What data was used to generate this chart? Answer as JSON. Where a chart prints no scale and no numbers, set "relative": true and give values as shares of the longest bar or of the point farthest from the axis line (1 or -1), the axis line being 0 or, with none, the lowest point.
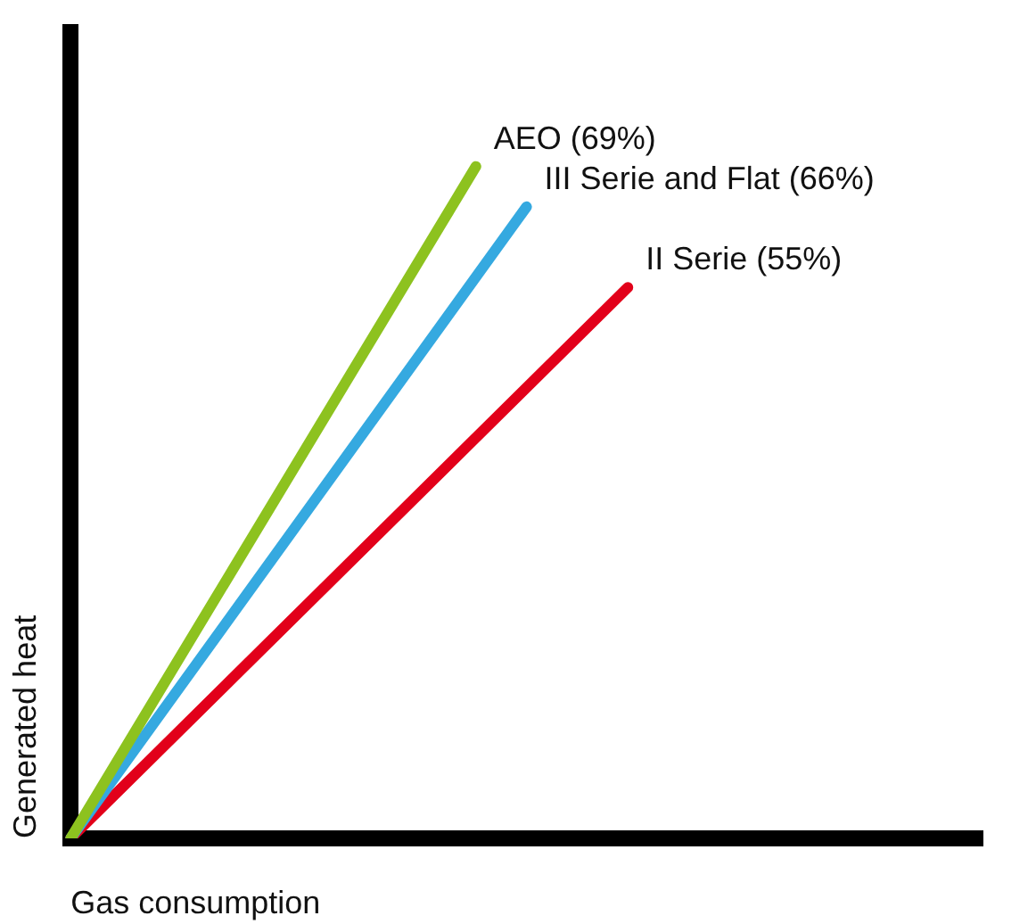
{
  "chart_data": {
    "type": "line",
    "relative": true,
    "xlabel": "Gas consumption",
    "ylabel": "Generated heat",
    "grid": false,
    "marker": "none",
    "line_style": "solid",
    "legend": false,
    "categories": [
      null,
      null,
      null,
      null,
      null,
      null,
      null,
      null,
      null,
      null,
      null,
      null,
      null,
      null,
      null,
      null,
      null,
      null,
      null
    ],
    "series": [
      {
        "name": "AEO (69%)",
        "color": "#8dc21f",
        "values": [
          0,
          null,
          null,
          null,
          null,
          null,
          null,
          null,
          1,
          null,
          null,
          null,
          null,
          null,
          null,
          null,
          null,
          null,
          null
        ]
      },
      {
        "name": "III Serie and Flat (66%)",
        "color": "#35a9e0",
        "values": [
          0,
          null,
          null,
          null,
          null,
          null,
          null,
          null,
          null,
          0.94,
          null,
          null,
          null,
          null,
          null,
          null,
          null,
          null,
          null
        ]
      },
      {
        "name": "II Serie (55%)",
        "color": "#e2001a",
        "values": [
          0,
          null,
          null,
          null,
          null,
          null,
          null,
          null,
          null,
          null,
          null,
          0.82,
          null,
          null,
          null,
          null,
          null,
          null,
          null
        ]
      }
    ]
  }
}
